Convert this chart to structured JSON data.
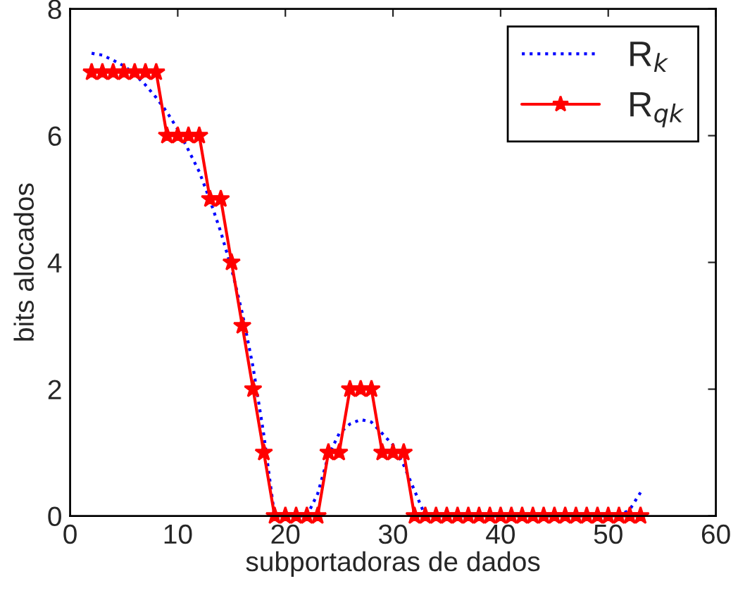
{
  "chart_data": {
    "type": "line",
    "xlabel": "subportadoras de dados",
    "ylabel": "bits alocados",
    "x": [
      2,
      3,
      4,
      5,
      6,
      7,
      8,
      9,
      10,
      11,
      12,
      13,
      14,
      15,
      16,
      17,
      18,
      19,
      20,
      21,
      22,
      23,
      24,
      25,
      26,
      27,
      28,
      29,
      30,
      31,
      32,
      33,
      34,
      35,
      36,
      37,
      38,
      39,
      40,
      41,
      42,
      43,
      44,
      45,
      46,
      47,
      48,
      49,
      50,
      51,
      52,
      53
    ],
    "series": [
      {
        "name": "R$_{k}$",
        "color": "#0000ff",
        "line_style": "dotted",
        "marker": "none",
        "values": [
          7.3,
          7.27,
          7.19,
          7.1,
          6.97,
          6.8,
          6.6,
          6.37,
          6.1,
          5.77,
          5.43,
          4.98,
          4.48,
          3.9,
          3.2,
          2.35,
          1.28,
          0,
          0,
          0,
          0,
          0.35,
          0.95,
          1.3,
          1.45,
          1.52,
          1.48,
          1.3,
          1.12,
          0.8,
          0.4,
          0,
          0,
          0,
          0,
          0,
          0,
          0,
          0,
          0,
          0,
          0,
          0,
          0,
          0,
          0,
          0,
          0,
          0,
          0,
          0.1,
          0.37
        ]
      },
      {
        "name": "R$_{qk}$",
        "color": "#ff0000",
        "line_style": "solid",
        "marker": "star",
        "values": [
          7,
          7,
          7,
          7,
          7,
          7,
          7,
          6,
          6,
          6,
          6,
          5,
          5,
          4,
          3,
          2,
          1,
          0,
          0,
          0,
          0,
          0,
          1,
          1,
          2,
          2,
          2,
          1,
          1,
          1,
          0,
          0,
          0,
          0,
          0,
          0,
          0,
          0,
          0,
          0,
          0,
          0,
          0,
          0,
          0,
          0,
          0,
          0,
          0,
          0,
          0,
          0
        ]
      }
    ],
    "xlim": [
      0,
      60
    ],
    "xticks": [
      0,
      10,
      20,
      30,
      40,
      50,
      60
    ],
    "ylim": [
      0,
      8
    ],
    "yticks": [
      0,
      2,
      4,
      6,
      8
    ],
    "grid": false,
    "legend": "top right"
  }
}
